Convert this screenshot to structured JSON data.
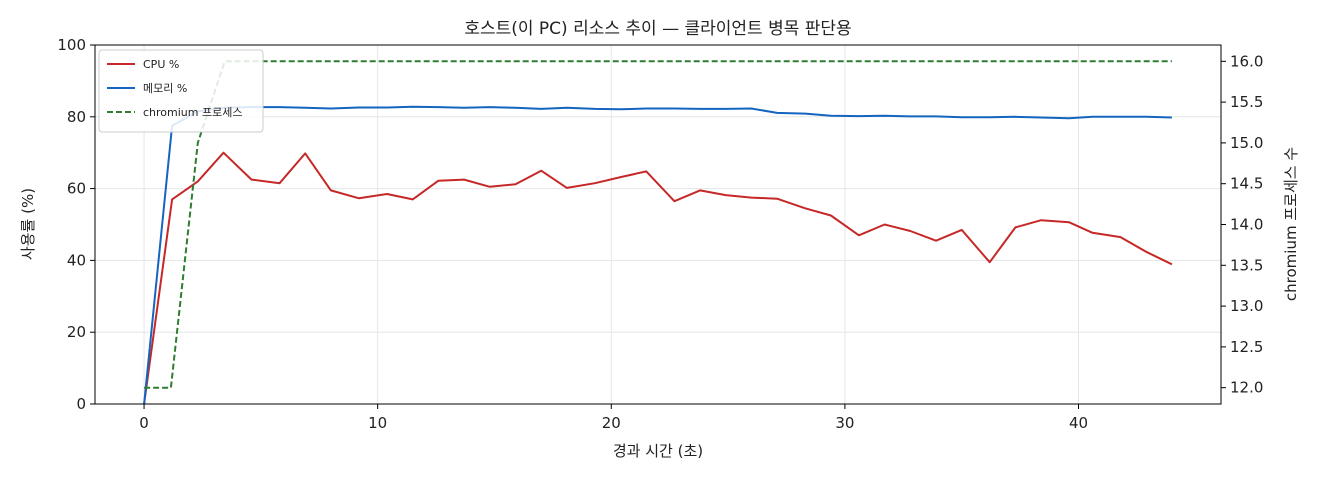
{
  "chart_data": {
    "type": "line",
    "title": "호스트(이 PC) 리소스 추이 — 클라이언트 병목 판단용",
    "xlabel": "경과 시간 (초)",
    "ylabel": "사용률 (%)",
    "y2label": "chromium 프로세스 수",
    "xlim": [
      -2.1,
      46.1
    ],
    "ylim": [
      0,
      100
    ],
    "y2lim": [
      11.8,
      16.2
    ],
    "x_ticks": [
      0,
      10,
      20,
      30,
      40
    ],
    "y_ticks": [
      0,
      20,
      40,
      60,
      80,
      100
    ],
    "y2_ticks": [
      12.0,
      12.5,
      13.0,
      13.5,
      14.0,
      14.5,
      15.0,
      15.5,
      16.0
    ],
    "y2_tick_labels": [
      "12.0",
      "12.5",
      "13.0",
      "13.5",
      "14.0",
      "14.5",
      "15.0",
      "15.5",
      "16.0"
    ],
    "grid": true,
    "legend_position": "top-left",
    "x": [
      0,
      1.15,
      2.3,
      3.45,
      4.6,
      5.75,
      6.9,
      8.05,
      9.2,
      10.35,
      11.5,
      12.65,
      13.8,
      14.95,
      16.1,
      17.25,
      18.4,
      19.55,
      20.7,
      21.85,
      23.0,
      24.15,
      25.3,
      26.45,
      27.6,
      28.75,
      29.9,
      31.05,
      32.2,
      33.35,
      34.5,
      35.65,
      36.8,
      37.95,
      39.1,
      40.25,
      41.4,
      42.55,
      43.7,
      44.0
    ],
    "series": [
      {
        "name": "CPU %",
        "axis": "left",
        "color": "#c62828",
        "style": "solid",
        "x": [
          0,
          1.2,
          2.3,
          3.4,
          4.6,
          5.8,
          6.9,
          8.0,
          9.2,
          10.4,
          11.5,
          12.6,
          13.7,
          14.8,
          15.9,
          17.0,
          18.1,
          19.3,
          20.4,
          21.5,
          22.7,
          23.8,
          24.9,
          26.0,
          27.1,
          28.3,
          29.4,
          30.6,
          31.7,
          32.8,
          33.9,
          35.0,
          36.2,
          37.3,
          38.4,
          39.6,
          40.6,
          41.8,
          42.9,
          44.0
        ],
        "values": [
          0,
          57,
          62,
          70,
          62.5,
          61.5,
          69.8,
          59.5,
          57.3,
          58.5,
          57,
          62.2,
          62.5,
          60.5,
          61.2,
          65,
          60.2,
          61.5,
          63.2,
          64.8,
          56.5,
          59.5,
          58.2,
          57.5,
          57.2,
          54.5,
          52.5,
          47,
          50,
          48.2,
          45.5,
          48.5,
          39.5,
          49.2,
          51.2,
          50.6,
          47.7,
          46.5,
          42.4,
          38.9
        ]
      },
      {
        "name": "메모리 %",
        "axis": "left",
        "color": "#1565c0",
        "style": "solid",
        "x": [
          0,
          1.2,
          2.3,
          3.4,
          4.6,
          5.8,
          6.9,
          8.0,
          9.2,
          10.4,
          11.5,
          12.6,
          13.7,
          14.8,
          15.9,
          17.0,
          18.1,
          19.3,
          20.4,
          21.5,
          22.7,
          23.8,
          24.9,
          26.0,
          27.1,
          28.3,
          29.4,
          30.6,
          31.7,
          32.8,
          33.9,
          35.0,
          36.2,
          37.3,
          38.4,
          39.6,
          40.6,
          41.8,
          42.9,
          44.0
        ],
        "values": [
          0,
          77.5,
          81.5,
          82.5,
          82.7,
          82.7,
          82.5,
          82.3,
          82.6,
          82.6,
          82.8,
          82.7,
          82.5,
          82.7,
          82.5,
          82.2,
          82.5,
          82.2,
          82.1,
          82.3,
          82.3,
          82.2,
          82.2,
          82.3,
          81.1,
          80.9,
          80.3,
          80.2,
          80.3,
          80.1,
          80.1,
          79.9,
          79.9,
          80.0,
          79.8,
          79.6,
          80.0,
          80.0,
          80.0,
          79.8
        ]
      },
      {
        "name": "chromium 프로세스",
        "axis": "right",
        "color": "#2e7d32",
        "style": "dashed",
        "x": [
          0,
          1.15,
          2.3,
          3.45,
          44.0
        ],
        "values": [
          12,
          12,
          15,
          16,
          16
        ]
      }
    ]
  }
}
